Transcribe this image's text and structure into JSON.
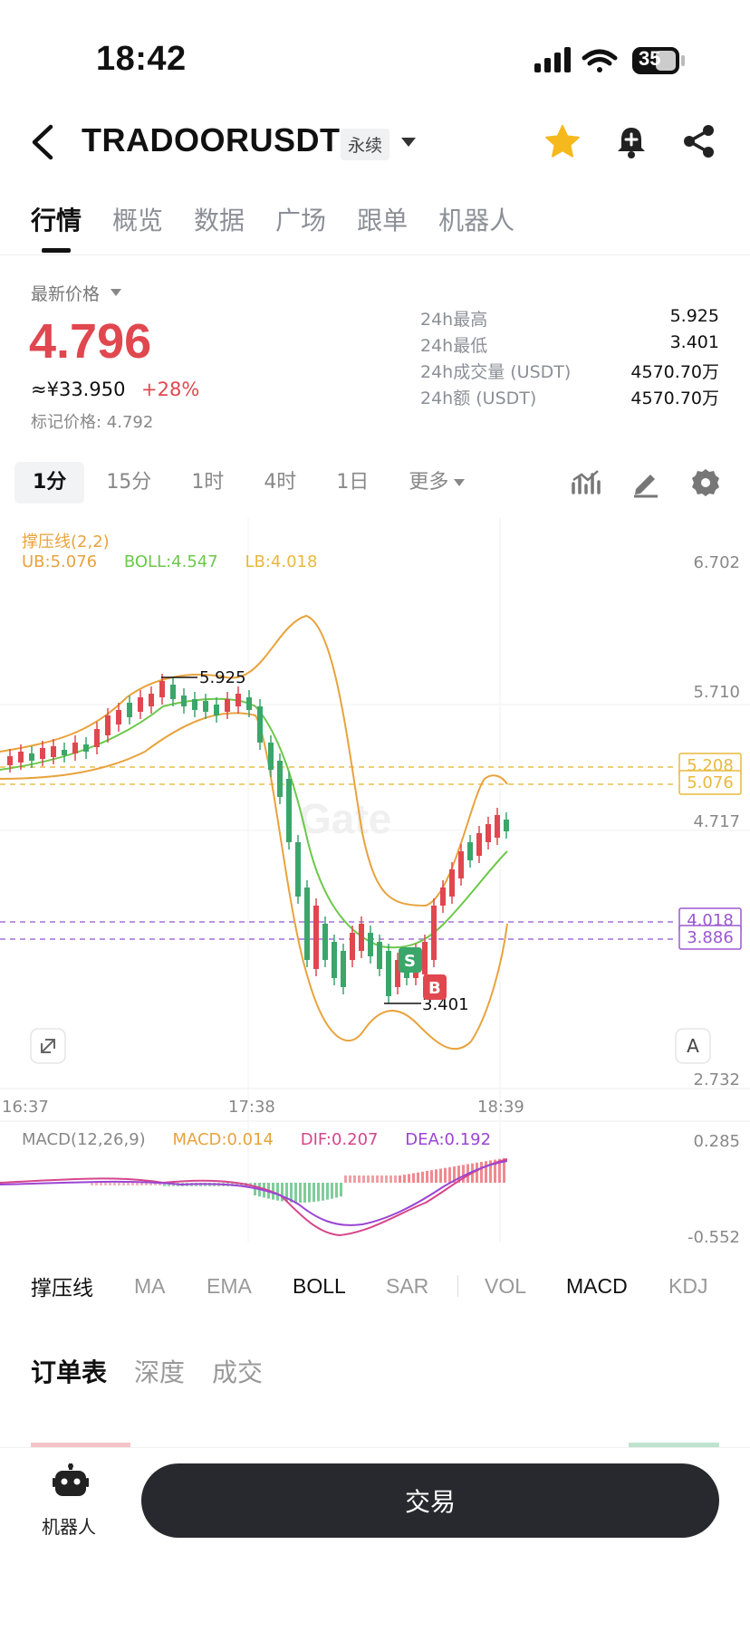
{
  "status_bar": {
    "time": "18:42",
    "battery": "35"
  },
  "header": {
    "pair": "TRADOORUSDT",
    "contract_type": "永续"
  },
  "main_tabs": [
    "行情",
    "概览",
    "数据",
    "广场",
    "跟单",
    "机器人"
  ],
  "price": {
    "label": "最新价格",
    "last": "4.796",
    "cny": "≈¥33.950",
    "change": "+28%",
    "mark": "标记价格: 4.792"
  },
  "stats": [
    {
      "label": "24h最高",
      "value": "5.925"
    },
    {
      "label": "24h最低",
      "value": "3.401"
    },
    {
      "label": "24h成交量 (USDT)",
      "value": "4570.70万"
    },
    {
      "label": "24h额 (USDT)",
      "value": "4570.70万"
    }
  ],
  "timeframes": [
    "1分",
    "15分",
    "1时",
    "4时",
    "1日",
    "更多"
  ],
  "indicator": {
    "title": "撑压线(2,2)",
    "ub": "UB:5.076",
    "boll": "BOLL:4.547",
    "lb": "LB:4.018"
  },
  "chart": {
    "price_axis": [
      "6.702",
      "5.710",
      "4.717",
      "2.732"
    ],
    "time_axis": [
      "16:37",
      "17:38",
      "18:39"
    ],
    "high_marker": "5.925",
    "low_marker": "3.401",
    "price_tags": [
      {
        "text": "5.208",
        "color": "#e8b93d"
      },
      {
        "text": "5.076",
        "color": "#e8b93d"
      },
      {
        "text": "4.018",
        "color": "#9b59d0"
      },
      {
        "text": "3.886",
        "color": "#9b59d0"
      }
    ],
    "sell_tag": "S",
    "buy_tag": "B",
    "auto_btn": "A",
    "watermark": "Gate"
  },
  "macd": {
    "title": "MACD(12,26,9)",
    "macd": "MACD:0.014",
    "dif": "DIF:0.207",
    "dea": "DEA:0.192",
    "axis_top": "0.285",
    "axis_bottom": "-0.552"
  },
  "indicator_tabs": [
    "撑压线",
    "MA",
    "EMA",
    "BOLL",
    "SAR",
    "VOL",
    "MACD",
    "KDJ"
  ],
  "orderbook_tabs": [
    "订单表",
    "深度",
    "成交"
  ],
  "bottom": {
    "robot_label": "机器人",
    "trade_label": "交易"
  },
  "colors": {
    "up": "#e0474f",
    "down": "#3aa66a",
    "boll_upper": "#e8a33d",
    "boll_mid": "#6cc84a",
    "dif": "#d6468c",
    "dea": "#9b45d4"
  }
}
